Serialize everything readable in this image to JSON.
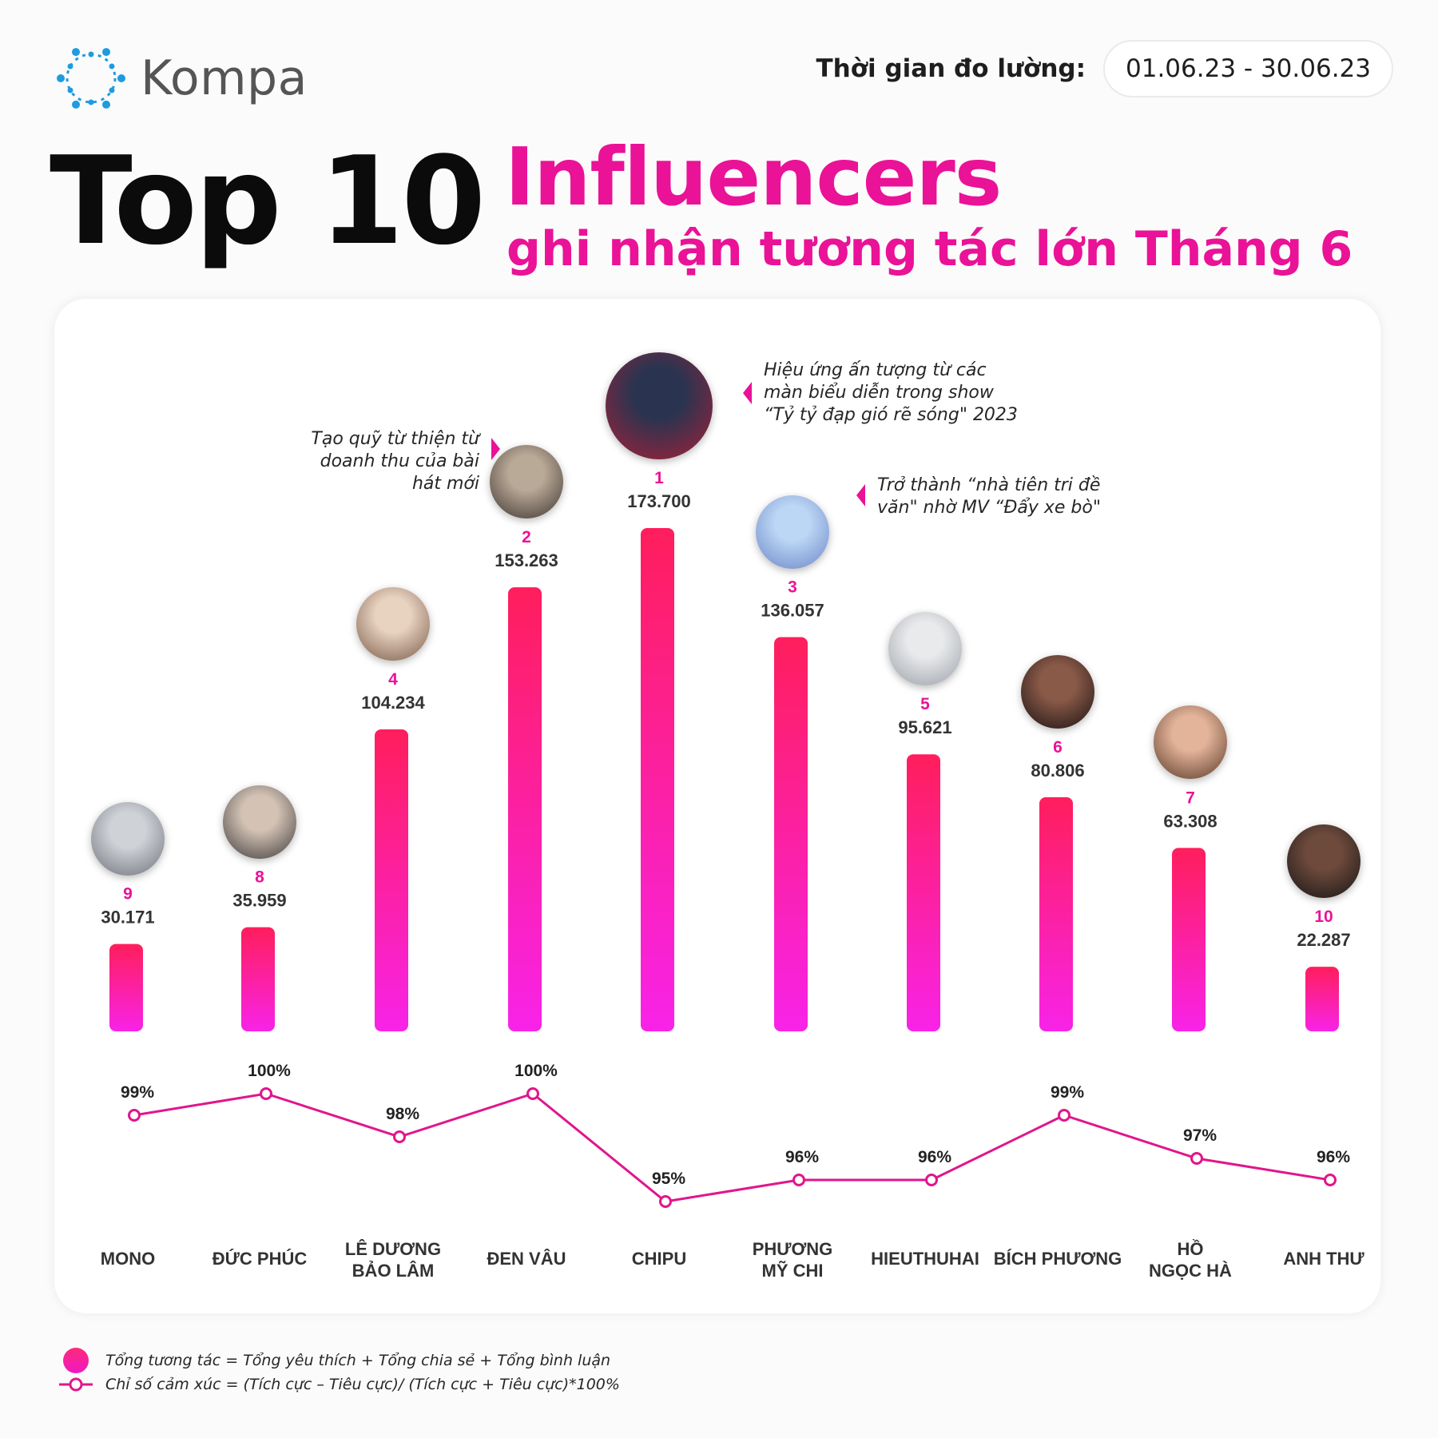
{
  "logo": {
    "text": "Kompa",
    "icon": "kompa-ring-icon",
    "color": "#1f9be0"
  },
  "period": {
    "label": "Thời gian đo lường:",
    "range": "01.06.23 - 30.06.23"
  },
  "title": {
    "main": "Top 10",
    "highlight": "Influencers",
    "sub": "ghi nhận tương tác lớn Tháng 6"
  },
  "colors": {
    "accent": "#ea1297",
    "bar_top": "#ff1e5c",
    "bar_bottom": "#f823e8",
    "line": "#e0168c"
  },
  "chart_data": {
    "type": "bar",
    "categories": [
      "MONO",
      "ĐỨC PHÚC",
      "LÊ DƯƠNG BẢO LÂM",
      "ĐEN VÂU",
      "CHIPU",
      "PHƯƠNG MỸ CHI",
      "HIEUTHUHAI",
      "BÍCH PHƯƠNG",
      "HỒ NGỌC HÀ",
      "ANH THƯ"
    ],
    "category_lines": [
      [
        "MONO"
      ],
      [
        "ĐỨC PHÚC"
      ],
      [
        "LÊ DƯƠNG",
        "BẢO LÂM"
      ],
      [
        "ĐEN VÂU"
      ],
      [
        "CHIPU"
      ],
      [
        "PHƯƠNG",
        "MỸ CHI"
      ],
      [
        "HIEUTHUHAI"
      ],
      [
        "BÍCH PHƯƠNG"
      ],
      [
        "HỒ",
        "NGỌC HÀ"
      ],
      [
        "ANH THƯ"
      ]
    ],
    "series": [
      {
        "name": "Tổng tương tác",
        "type": "bar",
        "values": [
          30171,
          35959,
          104234,
          153263,
          173700,
          136057,
          95621,
          80806,
          63308,
          22287
        ],
        "labels": [
          "30.171",
          "35.959",
          "104.234",
          "153.263",
          "173.700",
          "136.057",
          "95.621",
          "80.806",
          "63.308",
          "22.287"
        ],
        "ranks": [
          "9",
          "8",
          "4",
          "2",
          "1",
          "3",
          "5",
          "6",
          "7",
          "10"
        ]
      },
      {
        "name": "Chỉ số cảm xúc",
        "type": "line",
        "values": [
          99,
          100,
          98,
          100,
          95,
          96,
          96,
          99,
          97,
          96
        ],
        "labels": [
          "99%",
          "100%",
          "98%",
          "100%",
          "95%",
          "96%",
          "96%",
          "99%",
          "97%",
          "96%"
        ]
      }
    ],
    "ylim": [
      0,
      173700
    ],
    "grid": false
  },
  "annotations": {
    "den_vau": "Tạo quỹ từ thiện từ doanh thu của bài hát mới",
    "chipu": "Hiệu ứng ấn tượng từ các màn biểu diễn trong show “Tỷ tỷ đạp gió rẽ sóng\" 2023",
    "phuong_my_chi": "Trở thành “nhà tiên tri đề văn\" nhờ MV “Đẩy xe bò\""
  },
  "legend": {
    "bar": "Tổng tương tác = Tổng yêu thích + Tổng chia sẻ + Tổng bình luận",
    "line": "Chỉ số cảm xúc = (Tích cực – Tiêu cực)/ (Tích cực + Tiêu cực)*100%"
  }
}
